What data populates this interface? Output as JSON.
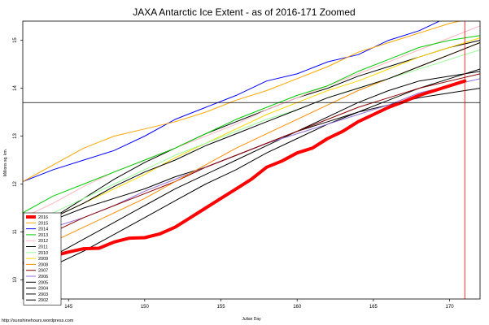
{
  "chart_data": {
    "type": "line",
    "title": "JAXA Antarctic Ice Extent - as of 2016-171 Zoomed",
    "xlabel": "Julian Day",
    "ylabel": "Millions sq. km.",
    "xlim": [
      142,
      172
    ],
    "ylim": [
      9.6,
      15.4
    ],
    "x_ticks": [
      145,
      150,
      155,
      160,
      165,
      170
    ],
    "y_ticks": [
      10,
      11,
      12,
      13,
      14,
      15
    ],
    "grid": false,
    "legend_position": "bottom-left",
    "reference_lines": {
      "horizontal_y": 13.7,
      "vertical_x": 171
    },
    "credit": "http://sunshinehours.wordpress.com",
    "series": [
      {
        "name": "2016",
        "color": "#ff0000",
        "width": 4,
        "x": [
          142,
          143,
          144,
          145,
          146,
          147,
          148,
          149,
          150,
          151,
          152,
          153,
          154,
          155,
          156,
          157,
          158,
          159,
          160,
          161,
          162,
          163,
          164,
          165,
          166,
          167,
          168,
          169,
          170,
          171
        ],
        "y": [
          10.35,
          10.42,
          10.5,
          10.58,
          10.65,
          10.66,
          10.79,
          10.87,
          10.88,
          10.96,
          11.1,
          11.3,
          11.5,
          11.7,
          11.9,
          12.1,
          12.35,
          12.48,
          12.65,
          12.75,
          12.95,
          13.1,
          13.3,
          13.45,
          13.6,
          13.72,
          13.85,
          13.95,
          14.05,
          14.15
        ]
      },
      {
        "name": "2015",
        "color": "#ffa500",
        "width": 1,
        "x": [
          142,
          144,
          146,
          148,
          150,
          152,
          154,
          156,
          158,
          160,
          162,
          164,
          166,
          168,
          170,
          172
        ],
        "y": [
          12.05,
          12.4,
          12.75,
          13.0,
          13.15,
          13.3,
          13.5,
          13.75,
          13.95,
          14.2,
          14.45,
          14.75,
          14.95,
          15.15,
          15.35,
          15.5
        ]
      },
      {
        "name": "2014",
        "color": "#0000ff",
        "width": 1,
        "x": [
          142,
          144,
          146,
          148,
          150,
          152,
          154,
          156,
          158,
          160,
          162,
          164,
          166,
          168,
          170,
          172
        ],
        "y": [
          12.05,
          12.3,
          12.5,
          12.7,
          13.0,
          13.35,
          13.6,
          13.85,
          14.15,
          14.3,
          14.55,
          14.7,
          15.0,
          15.2,
          15.5,
          15.75
        ]
      },
      {
        "name": "2013",
        "color": "#00cc00",
        "width": 1,
        "x": [
          142,
          144,
          146,
          148,
          150,
          152,
          154,
          156,
          158,
          160,
          162,
          164,
          166,
          168,
          170,
          172
        ],
        "y": [
          11.4,
          11.75,
          12.0,
          12.25,
          12.5,
          12.75,
          13.05,
          13.35,
          13.6,
          13.85,
          14.05,
          14.35,
          14.6,
          14.85,
          15.0,
          15.1
        ]
      },
      {
        "name": "2012",
        "color": "#ffb6c1",
        "width": 1,
        "x": [
          142,
          144,
          146,
          148,
          150,
          152,
          154,
          156,
          158,
          160,
          162,
          164,
          166,
          168,
          170,
          172
        ],
        "y": [
          11.3,
          11.6,
          11.95,
          12.25,
          12.5,
          12.75,
          13.0,
          13.25,
          13.55,
          13.8,
          14.05,
          14.3,
          14.55,
          14.8,
          15.05,
          15.3
        ]
      },
      {
        "name": "2011",
        "color": "#000000",
        "width": 1,
        "x": [
          142,
          144,
          146,
          148,
          150,
          152,
          154,
          156,
          158,
          160,
          162,
          164,
          166,
          168,
          170,
          172
        ],
        "y": [
          11.0,
          11.3,
          11.6,
          11.95,
          12.25,
          12.5,
          12.8,
          13.05,
          13.3,
          13.55,
          13.8,
          14.0,
          14.2,
          14.45,
          14.7,
          14.95
        ]
      },
      {
        "name": "2010",
        "color": "#98fb98",
        "width": 1,
        "x": [
          142,
          144,
          146,
          148,
          150,
          152,
          154,
          156,
          158,
          160,
          162,
          164,
          166,
          168,
          170,
          172
        ],
        "y": [
          11.1,
          11.4,
          11.7,
          12.0,
          12.3,
          12.6,
          12.85,
          13.1,
          13.35,
          13.55,
          13.8,
          14.0,
          14.2,
          14.4,
          14.6,
          14.8
        ]
      },
      {
        "name": "2009",
        "color": "#ffd700",
        "width": 1,
        "x": [
          142,
          144,
          146,
          148,
          150,
          152,
          154,
          156,
          158,
          160,
          162,
          164,
          166,
          168,
          170,
          172
        ],
        "y": [
          11.0,
          11.3,
          11.6,
          11.9,
          12.2,
          12.55,
          12.85,
          13.15,
          13.45,
          13.7,
          13.95,
          14.15,
          14.4,
          14.65,
          14.85,
          15.05
        ]
      },
      {
        "name": "2008",
        "color": "#ff8c00",
        "width": 1,
        "x": [
          142,
          144,
          146,
          148,
          150,
          152,
          154,
          156,
          158,
          160,
          162,
          164,
          166,
          168,
          170,
          172
        ],
        "y": [
          10.6,
          10.8,
          11.1,
          11.4,
          11.7,
          12.05,
          12.4,
          12.75,
          13.05,
          13.35,
          13.65,
          13.95,
          14.2,
          14.45,
          14.7,
          14.95
        ]
      },
      {
        "name": "2007",
        "color": "#8b0000",
        "width": 1,
        "x": [
          142,
          144,
          146,
          148,
          150,
          152,
          154,
          156,
          158,
          160,
          162,
          164,
          166,
          168,
          170,
          172
        ],
        "y": [
          10.8,
          11.0,
          11.3,
          11.55,
          11.8,
          12.05,
          12.35,
          12.6,
          12.85,
          13.1,
          13.35,
          13.6,
          13.8,
          14.0,
          14.15,
          14.3
        ]
      },
      {
        "name": "2006",
        "color": "#9370db",
        "width": 1,
        "x": [
          142,
          144,
          146,
          148,
          150,
          152,
          154,
          156,
          158,
          160,
          162,
          164,
          166,
          168,
          170,
          172
        ],
        "y": [
          10.9,
          11.1,
          11.3,
          11.55,
          11.85,
          12.1,
          12.35,
          12.6,
          12.85,
          13.05,
          13.25,
          13.45,
          13.65,
          13.9,
          14.05,
          14.2
        ]
      },
      {
        "name": "2005",
        "color": "#000000",
        "width": 1,
        "x": [
          142,
          144,
          146,
          148,
          150,
          152,
          154,
          156,
          158,
          160,
          162,
          164,
          166,
          168,
          170,
          172
        ],
        "y": [
          10.2,
          10.5,
          10.85,
          11.2,
          11.55,
          11.9,
          12.2,
          12.5,
          12.8,
          13.1,
          13.4,
          13.7,
          13.95,
          14.15,
          14.25,
          14.35
        ]
      },
      {
        "name": "2004",
        "color": "#000000",
        "width": 1,
        "x": [
          142,
          144,
          146,
          148,
          150,
          152,
          154,
          156,
          158,
          160,
          162,
          164,
          166,
          168,
          170,
          172
        ],
        "y": [
          10.0,
          10.3,
          10.6,
          10.95,
          11.3,
          11.65,
          12.0,
          12.3,
          12.65,
          12.95,
          13.25,
          13.5,
          13.75,
          14.0,
          14.2,
          14.4
        ]
      },
      {
        "name": "2003",
        "color": "#000000",
        "width": 1,
        "x": [
          142,
          144,
          146,
          148,
          150,
          152,
          154,
          156,
          158,
          160,
          162,
          164,
          166,
          168,
          170,
          172
        ],
        "y": [
          10.9,
          11.3,
          11.7,
          12.1,
          12.45,
          12.75,
          13.05,
          13.3,
          13.55,
          13.8,
          14.0,
          14.25,
          14.45,
          14.65,
          14.85,
          15.0
        ]
      },
      {
        "name": "2002",
        "color": "#000000",
        "width": 1,
        "x": [
          142,
          144,
          146,
          148,
          150,
          152,
          154,
          156,
          158,
          160,
          162,
          164,
          166,
          168,
          170,
          172
        ],
        "y": [
          11.0,
          11.25,
          11.5,
          11.7,
          11.9,
          12.15,
          12.35,
          12.6,
          12.85,
          13.1,
          13.3,
          13.5,
          13.65,
          13.8,
          13.9,
          14.0
        ]
      }
    ]
  }
}
